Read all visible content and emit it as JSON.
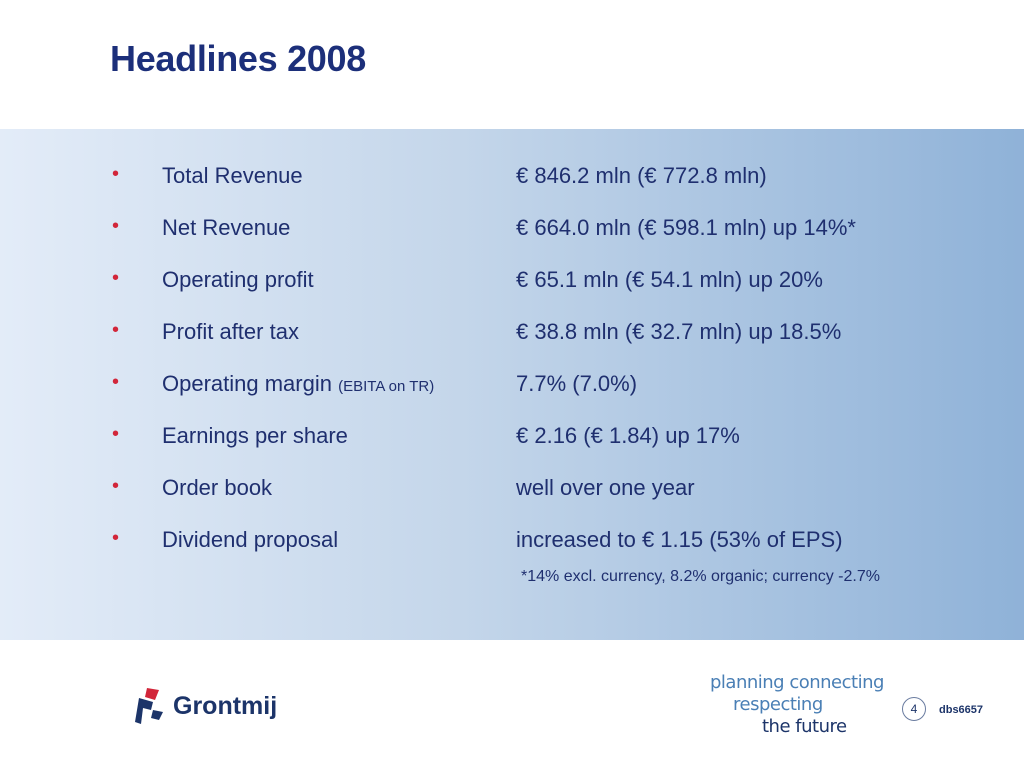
{
  "slide": {
    "title": "Headlines 2008",
    "bullet_symbol": "•",
    "rows": [
      {
        "label": "Total Revenue",
        "note": "",
        "value": "€ 846.2 mln (€ 772.8 mln)"
      },
      {
        "label": "Net Revenue",
        "note": "",
        "value": "€ 664.0 mln (€ 598.1 mln) up 14%*"
      },
      {
        "label": "Operating profit",
        "note": "",
        "value": "€ 65.1 mln (€ 54.1 mln) up 20%"
      },
      {
        "label": "Profit after tax",
        "note": "",
        "value": "€ 38.8 mln (€ 32.7 mln) up 18.5%"
      },
      {
        "label": "Operating margin ",
        "note": "(EBITA on TR)",
        "value": "7.7% (7.0%)"
      },
      {
        "label": "Earnings per share",
        "note": "",
        "value": "€ 2.16 (€ 1.84) up 17%"
      },
      {
        "label": "Order book",
        "note": "",
        "value": "well over one year"
      },
      {
        "label": "Dividend proposal",
        "note": "",
        "value": "increased to € 1.15 (53% of EPS)"
      }
    ],
    "footnote": "*14% excl. currency, 8.2% organic; currency -2.7%"
  },
  "footer": {
    "logo_text": "Grontmij",
    "tagline": [
      "planning connecting",
      "respecting",
      "the future"
    ],
    "page_number": "4",
    "doc_id": "dbs6657"
  },
  "colors": {
    "title": "#1c2f7a",
    "bullet": "#d2263a",
    "text": "#1f2f6f",
    "band_left": "#e3ecf8",
    "band_right": "#8fb2d8"
  },
  "icons": {
    "logo_mark": "grontmij-logo-icon"
  }
}
